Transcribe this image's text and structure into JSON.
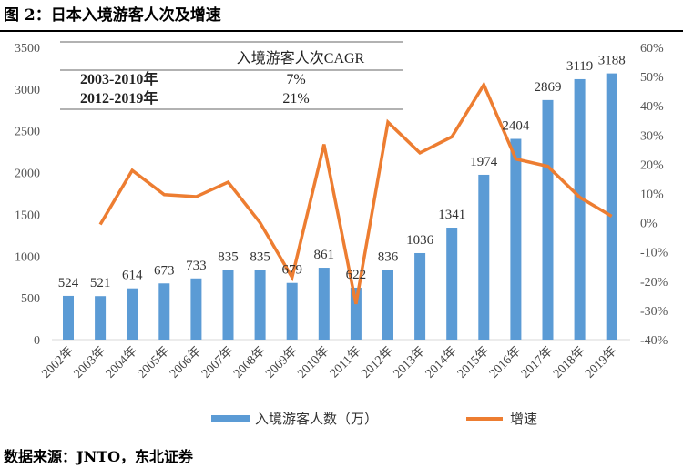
{
  "title": "图 2：日本入境游客人次及增速",
  "source": "数据来源：JNTO，东北证券",
  "inset_table": {
    "header": "入境游客人次CAGR",
    "rows": [
      {
        "period": "2003-2010年",
        "value": "7%"
      },
      {
        "period": "2012-2019年",
        "value": "21%"
      }
    ]
  },
  "chart_data": {
    "type": "bar+line",
    "categories": [
      "2002年",
      "2003年",
      "2004年",
      "2005年",
      "2006年",
      "2007年",
      "2008年",
      "2009年",
      "2010年",
      "2011年",
      "2012年",
      "2013年",
      "2014年",
      "2015年",
      "2016年",
      "2017年",
      "2018年",
      "2019年"
    ],
    "series": [
      {
        "name": "入境游客人数（万）",
        "type": "bar",
        "axis": "left",
        "color": "#5b9bd5",
        "values": [
          524,
          521,
          614,
          673,
          733,
          835,
          835,
          679,
          861,
          622,
          836,
          1036,
          1341,
          1974,
          2404,
          2869,
          3119,
          3188
        ]
      },
      {
        "name": "增速",
        "type": "line",
        "axis": "right",
        "color": "#ed7d31",
        "values": [
          null,
          -0.6,
          17.9,
          9.6,
          8.9,
          13.9,
          0.0,
          -18.7,
          26.8,
          -27.8,
          34.4,
          23.9,
          29.4,
          47.2,
          21.8,
          19.3,
          8.7,
          2.2
        ]
      }
    ],
    "left_axis": {
      "range": [
        0,
        3500
      ],
      "ticks": [
        "0",
        "500",
        "1000",
        "1500",
        "2000",
        "2500",
        "3000",
        "3500"
      ]
    },
    "right_axis": {
      "range": [
        -40,
        60
      ],
      "ticks": [
        "-40%",
        "-30%",
        "-20%",
        "-10%",
        "0%",
        "10%",
        "20%",
        "30%",
        "40%",
        "50%",
        "60%"
      ]
    },
    "grid": false,
    "legend_position": "bottom"
  }
}
